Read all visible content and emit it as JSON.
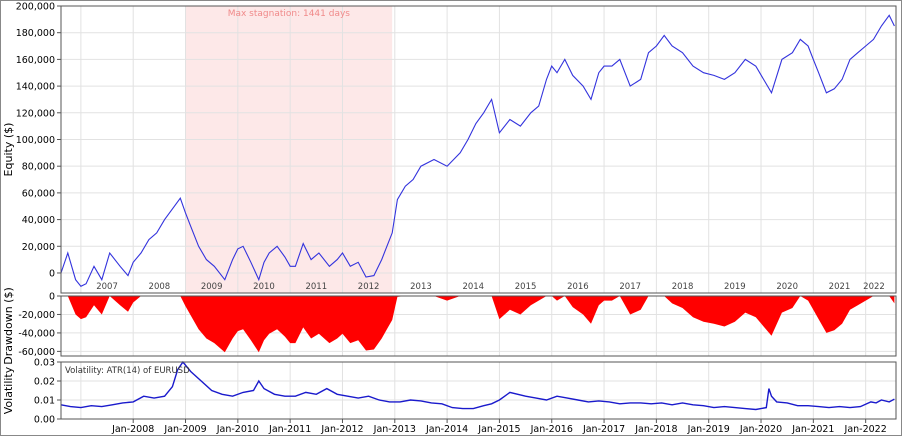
{
  "chart_data": [
    {
      "type": "line",
      "ylabel": "Equity ($)",
      "ylim": [
        -15000,
        200000
      ],
      "yticks": [
        0,
        20000,
        40000,
        60000,
        80000,
        100000,
        120000,
        140000,
        160000,
        180000,
        200000
      ],
      "ytick_labels": [
        "0",
        "20,000",
        "40,000",
        "60,000",
        "80,000",
        "100,000",
        "120,000",
        "140,000",
        "160,000",
        "180,000",
        "200,000"
      ],
      "year_labels": [
        "2007",
        "2008",
        "2009",
        "2010",
        "2011",
        "2012",
        "2013",
        "2014",
        "2015",
        "2016",
        "2017",
        "2018",
        "2019",
        "2020",
        "2021",
        "2022"
      ],
      "annotation": "Max stagnation: 1441 days",
      "stagnation_range": [
        "2009.0",
        "2012.95"
      ],
      "line_color": "#3333dd",
      "stagnation_color": "#fde8e8",
      "x": [
        2006.62,
        2006.75,
        2006.9,
        2007.0,
        2007.1,
        2007.25,
        2007.4,
        2007.55,
        2007.75,
        2007.9,
        2008.0,
        2008.15,
        2008.3,
        2008.45,
        2008.6,
        2008.75,
        2008.9,
        2009.0,
        2009.1,
        2009.25,
        2009.4,
        2009.55,
        2009.75,
        2009.9,
        2010.0,
        2010.1,
        2010.25,
        2010.4,
        2010.5,
        2010.6,
        2010.75,
        2010.9,
        2011.0,
        2011.1,
        2011.25,
        2011.4,
        2011.55,
        2011.75,
        2011.9,
        2012.0,
        2012.15,
        2012.3,
        2012.45,
        2012.6,
        2012.75,
        2012.85,
        2012.95,
        2013.05,
        2013.2,
        2013.35,
        2013.5,
        2013.75,
        2014.0,
        2014.25,
        2014.4,
        2014.55,
        2014.7,
        2014.85,
        2015.0,
        2015.2,
        2015.4,
        2015.6,
        2015.75,
        2015.9,
        2016.0,
        2016.1,
        2016.25,
        2016.4,
        2016.6,
        2016.75,
        2016.9,
        2017.0,
        2017.15,
        2017.3,
        2017.5,
        2017.7,
        2017.85,
        2018.0,
        2018.15,
        2018.3,
        2018.5,
        2018.7,
        2018.9,
        2019.1,
        2019.3,
        2019.5,
        2019.7,
        2019.9,
        2020.05,
        2020.2,
        2020.4,
        2020.6,
        2020.75,
        2020.9,
        2021.0,
        2021.1,
        2021.25,
        2021.4,
        2021.55,
        2021.7,
        2021.85,
        2022.0,
        2022.15,
        2022.3,
        2022.45,
        2022.55
      ],
      "values": [
        0,
        15000,
        -5000,
        -10000,
        -8000,
        5000,
        -5000,
        15000,
        5000,
        -2000,
        8000,
        15000,
        25000,
        30000,
        40000,
        48000,
        56000,
        45000,
        35000,
        20000,
        10000,
        5000,
        -5000,
        10000,
        18000,
        20000,
        8000,
        -5000,
        8000,
        15000,
        20000,
        12000,
        5000,
        5000,
        22000,
        10000,
        15000,
        5000,
        10000,
        15000,
        5000,
        8000,
        -3000,
        -2000,
        10000,
        20000,
        30000,
        55000,
        65000,
        70000,
        80000,
        85000,
        80000,
        90000,
        100000,
        112000,
        120000,
        130000,
        105000,
        115000,
        110000,
        120000,
        125000,
        145000,
        155000,
        150000,
        160000,
        148000,
        140000,
        130000,
        150000,
        155000,
        155000,
        160000,
        140000,
        145000,
        165000,
        170000,
        178000,
        170000,
        165000,
        155000,
        150000,
        148000,
        145000,
        150000,
        160000,
        155000,
        145000,
        135000,
        160000,
        165000,
        175000,
        170000,
        160000,
        150000,
        135000,
        138000,
        145000,
        160000,
        165000,
        170000,
        175000,
        185000,
        193000,
        185000
      ]
    },
    {
      "type": "area",
      "ylabel": "Drawdown ($)",
      "ylim": [
        -65000,
        0
      ],
      "yticks": [
        0,
        -20000,
        -40000,
        -60000
      ],
      "ytick_labels": [
        "0",
        "-20,000",
        "-40,000",
        "-60,000"
      ],
      "fill_color": "#ff0000",
      "x": [
        2006.62,
        2006.75,
        2006.9,
        2007.0,
        2007.1,
        2007.25,
        2007.4,
        2007.55,
        2007.75,
        2007.9,
        2008.0,
        2008.15,
        2008.3,
        2008.45,
        2008.6,
        2008.75,
        2008.9,
        2009.0,
        2009.1,
        2009.25,
        2009.4,
        2009.55,
        2009.75,
        2009.9,
        2010.0,
        2010.1,
        2010.25,
        2010.4,
        2010.5,
        2010.6,
        2010.75,
        2010.9,
        2011.0,
        2011.1,
        2011.25,
        2011.4,
        2011.55,
        2011.75,
        2011.9,
        2012.0,
        2012.15,
        2012.3,
        2012.45,
        2012.6,
        2012.75,
        2012.85,
        2012.95,
        2013.05,
        2013.2,
        2013.35,
        2013.5,
        2013.75,
        2014.0,
        2014.25,
        2014.4,
        2014.55,
        2014.7,
        2014.85,
        2015.0,
        2015.2,
        2015.4,
        2015.6,
        2015.75,
        2015.9,
        2016.0,
        2016.1,
        2016.25,
        2016.4,
        2016.6,
        2016.75,
        2016.9,
        2017.0,
        2017.15,
        2017.3,
        2017.5,
        2017.7,
        2017.85,
        2018.0,
        2018.15,
        2018.3,
        2018.5,
        2018.7,
        2018.9,
        2019.1,
        2019.3,
        2019.5,
        2019.7,
        2019.9,
        2020.05,
        2020.2,
        2020.4,
        2020.6,
        2020.75,
        2020.9,
        2021.0,
        2021.1,
        2021.25,
        2021.4,
        2021.55,
        2021.7,
        2021.85,
        2022.0,
        2022.15,
        2022.3,
        2022.45,
        2022.55
      ],
      "values": [
        0,
        0,
        -20000,
        -25000,
        -23000,
        -10000,
        -20000,
        0,
        -10000,
        -17000,
        -7000,
        0,
        0,
        0,
        0,
        0,
        0,
        -11000,
        -21000,
        -36000,
        -46000,
        -51000,
        -61000,
        -46000,
        -38000,
        -36000,
        -48000,
        -61000,
        -48000,
        -41000,
        -36000,
        -44000,
        -51000,
        -51000,
        -34000,
        -46000,
        -41000,
        -51000,
        -46000,
        -41000,
        -51000,
        -48000,
        -59000,
        -58000,
        -46000,
        -36000,
        -26000,
        -1000,
        0,
        0,
        0,
        0,
        -5000,
        0,
        0,
        0,
        0,
        0,
        -25000,
        -15000,
        -20000,
        -10000,
        -5000,
        0,
        0,
        -5000,
        0,
        -12000,
        -20000,
        -30000,
        -10000,
        -5000,
        -5000,
        0,
        -20000,
        -15000,
        0,
        0,
        0,
        -8000,
        -13000,
        -23000,
        -28000,
        -30000,
        -33000,
        -28000,
        -18000,
        -23000,
        -33000,
        -43000,
        -18000,
        -13000,
        0,
        -5000,
        -15000,
        -25000,
        -40000,
        -37000,
        -30000,
        -15000,
        -10000,
        -5000,
        0,
        0,
        0,
        -8000
      ]
    },
    {
      "type": "line",
      "ylabel": "Volatility",
      "title": "Volatility: ATR(14) of EURUSD",
      "ylim": [
        0,
        0.03
      ],
      "yticks": [
        0,
        0.01,
        0.02,
        0.03
      ],
      "ytick_labels": [
        "0.00",
        "0.01",
        "0.02",
        "0.03"
      ],
      "xtick_labels": [
        "Jan-2008",
        "Jan-2009",
        "Jan-2010",
        "Jan-2011",
        "Jan-2012",
        "Jan-2013",
        "Jan-2014",
        "Jan-2015",
        "Jan-2016",
        "Jan-2017",
        "Jan-2018",
        "Jan-2019",
        "Jan-2020",
        "Jan-2021",
        "Jan-2022"
      ],
      "line_color": "#1a1acc",
      "x": [
        2006.62,
        2006.8,
        2007.0,
        2007.2,
        2007.4,
        2007.6,
        2007.8,
        2008.0,
        2008.2,
        2008.4,
        2008.6,
        2008.75,
        2008.85,
        2008.95,
        2009.1,
        2009.3,
        2009.5,
        2009.7,
        2009.9,
        2010.1,
        2010.3,
        2010.4,
        2010.5,
        2010.7,
        2010.9,
        2011.1,
        2011.3,
        2011.5,
        2011.7,
        2011.9,
        2012.1,
        2012.3,
        2012.5,
        2012.7,
        2012.9,
        2013.1,
        2013.3,
        2013.5,
        2013.7,
        2013.9,
        2014.1,
        2014.3,
        2014.5,
        2014.7,
        2014.85,
        2015.0,
        2015.1,
        2015.2,
        2015.5,
        2015.7,
        2015.9,
        2016.1,
        2016.3,
        2016.5,
        2016.7,
        2016.9,
        2017.1,
        2017.3,
        2017.5,
        2017.7,
        2017.9,
        2018.1,
        2018.3,
        2018.5,
        2018.7,
        2018.9,
        2019.1,
        2019.3,
        2019.5,
        2019.7,
        2019.9,
        2020.1,
        2020.15,
        2020.2,
        2020.3,
        2020.5,
        2020.7,
        2020.9,
        2021.1,
        2021.3,
        2021.5,
        2021.7,
        2021.9,
        2022.1,
        2022.2,
        2022.3,
        2022.45,
        2022.55
      ],
      "values": [
        0.0075,
        0.0065,
        0.006,
        0.007,
        0.0065,
        0.0075,
        0.0085,
        0.009,
        0.012,
        0.011,
        0.012,
        0.017,
        0.026,
        0.03,
        0.025,
        0.02,
        0.015,
        0.013,
        0.012,
        0.014,
        0.015,
        0.02,
        0.016,
        0.013,
        0.012,
        0.012,
        0.014,
        0.013,
        0.016,
        0.013,
        0.012,
        0.011,
        0.012,
        0.01,
        0.009,
        0.009,
        0.01,
        0.0095,
        0.0085,
        0.008,
        0.006,
        0.0055,
        0.0055,
        0.007,
        0.008,
        0.01,
        0.012,
        0.014,
        0.012,
        0.011,
        0.01,
        0.012,
        0.011,
        0.01,
        0.009,
        0.0095,
        0.009,
        0.008,
        0.0085,
        0.0085,
        0.008,
        0.0085,
        0.0075,
        0.0085,
        0.0075,
        0.007,
        0.006,
        0.0065,
        0.006,
        0.0055,
        0.005,
        0.006,
        0.016,
        0.012,
        0.009,
        0.0085,
        0.007,
        0.007,
        0.0065,
        0.006,
        0.0065,
        0.006,
        0.0065,
        0.009,
        0.0085,
        0.01,
        0.009,
        0.0105
      ]
    }
  ]
}
